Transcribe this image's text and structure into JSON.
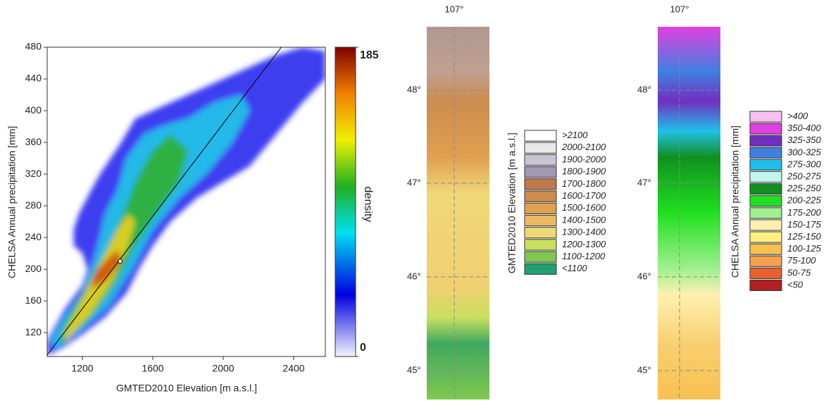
{
  "chart_data": {
    "type": "contour",
    "xlabel": "GMTED2010 Elevation [m a.s.l.]",
    "ylabel": "CHELSA Annual precipitation [mm]",
    "xlim": [
      1000,
      2580
    ],
    "ylim": [
      90,
      480
    ],
    "xticks": [
      1200,
      1600,
      2000,
      2400
    ],
    "yticks": [
      120,
      160,
      200,
      240,
      280,
      320,
      360,
      400,
      440,
      480
    ],
    "contours": [
      {
        "level": 15,
        "color": "#2828f0",
        "x": [
          1000,
          1080,
          1200,
          1330,
          1450,
          1520,
          1600,
          1700,
          1850,
          2000,
          2150,
          2300,
          2450,
          2580,
          2580,
          2450,
          2300,
          2150,
          2000,
          1900,
          1800,
          1700,
          1600,
          1500,
          1420,
          1360,
          1300,
          1250,
          1180,
          1150,
          1150,
          1200,
          1230,
          1200,
          1150,
          1100,
          1050,
          1000
        ],
        "y": [
          92,
          100,
          118,
          140,
          170,
          200,
          230,
          260,
          290,
          310,
          330,
          370,
          410,
          440,
          475,
          480,
          470,
          455,
          440,
          430,
          420,
          410,
          400,
          390,
          360,
          340,
          320,
          300,
          270,
          250,
          230,
          220,
          200,
          180,
          165,
          150,
          130,
          110
        ]
      },
      {
        "level": 70,
        "color": "#20c8e8",
        "x": [
          1050,
          1200,
          1350,
          1480,
          1600,
          1750,
          1900,
          2050,
          2150,
          2100,
          1950,
          1800,
          1650,
          1550,
          1450,
          1400,
          1330,
          1300,
          1250,
          1200,
          1100,
          1020
        ],
        "y": [
          100,
          125,
          155,
          200,
          250,
          290,
          320,
          360,
          400,
          420,
          410,
          390,
          380,
          370,
          340,
          300,
          270,
          240,
          200,
          170,
          140,
          110
        ]
      },
      {
        "level": 100,
        "color": "#30b030",
        "x": [
          1080,
          1250,
          1380,
          1500,
          1650,
          1750,
          1800,
          1700,
          1600,
          1500,
          1430,
          1370,
          1300,
          1230,
          1150,
          1080
        ],
        "y": [
          105,
          140,
          180,
          230,
          280,
          310,
          350,
          370,
          350,
          310,
          270,
          240,
          210,
          180,
          150,
          120
        ]
      },
      {
        "level": 130,
        "color": "#e8d020",
        "x": [
          1100,
          1250,
          1370,
          1460,
          1500,
          1460,
          1400,
          1330,
          1250,
          1170,
          1100
        ],
        "y": [
          108,
          145,
          185,
          230,
          260,
          270,
          250,
          220,
          185,
          150,
          120
        ]
      },
      {
        "level": 170,
        "color": "#d05010",
        "x": [
          1250,
          1330,
          1420,
          1400,
          1330,
          1270
        ],
        "y": [
          175,
          185,
          210,
          225,
          210,
          195
        ]
      }
    ],
    "line": {
      "x": [
        1000,
        2330
      ],
      "y": [
        92,
        480
      ]
    },
    "point": {
      "x": 1415,
      "y": 210
    },
    "colorbar": {
      "lim": [
        0,
        185
      ],
      "ticks": [
        0,
        185
      ],
      "label": "density"
    }
  },
  "maps": [
    {
      "lon_label": "107°",
      "lat_labels": [
        "48°",
        "47°",
        "46°",
        "45°"
      ],
      "legend_title": "GMTED2010 Elevation [m a.s.l.]",
      "legend": [
        {
          "label": ">2100",
          "color": "#ffffff"
        },
        {
          "label": "2000-2100",
          "color": "#e8e8e8"
        },
        {
          "label": "1900-2000",
          "color": "#c8c4d4"
        },
        {
          "label": "1800-1900",
          "color": "#a09ab4"
        },
        {
          "label": "1700-1800",
          "color": "#c0784c"
        },
        {
          "label": "1600-1700",
          "color": "#cc8c50"
        },
        {
          "label": "1500-1600",
          "color": "#e0a050"
        },
        {
          "label": "1400-1500",
          "color": "#ecb860"
        },
        {
          "label": "1300-1400",
          "color": "#f0d878"
        },
        {
          "label": "1200-1300",
          "color": "#c8e060"
        },
        {
          "label": "1100-1200",
          "color": "#80c850"
        },
        {
          "label": "<1100",
          "color": "#20a070"
        }
      ]
    },
    {
      "lon_label": "107°",
      "lat_labels": [
        "48°",
        "47°",
        "46°",
        "45°"
      ],
      "legend_title": "CHELSA Annual precipitation [mm]",
      "legend": [
        {
          "label": ">400",
          "color": "#f8c0f0"
        },
        {
          "label": "350-400",
          "color": "#e040e0"
        },
        {
          "label": "325-350",
          "color": "#7030c0"
        },
        {
          "label": "300-325",
          "color": "#4080e0"
        },
        {
          "label": "275-300",
          "color": "#20c0e8"
        },
        {
          "label": "250-275",
          "color": "#c0f8f0"
        },
        {
          "label": "225-250",
          "color": "#109020"
        },
        {
          "label": "200-225",
          "color": "#20e020"
        },
        {
          "label": "175-200",
          "color": "#a0f090"
        },
        {
          "label": "150-175",
          "color": "#fff0b0"
        },
        {
          "label": "125-150",
          "color": "#fff080"
        },
        {
          "label": "100-125",
          "color": "#f8c050"
        },
        {
          "label": "75-100",
          "color": "#f8a050"
        },
        {
          "label": "50-75",
          "color": "#e86030"
        },
        {
          "label": "<50",
          "color": "#b02020"
        }
      ]
    }
  ]
}
